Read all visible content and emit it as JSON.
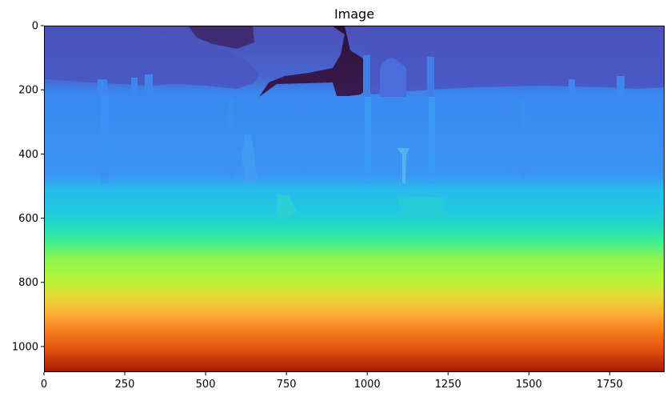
{
  "chart_data": {
    "type": "heatmap",
    "title": "Image",
    "xlabel": "",
    "ylabel": "",
    "xlim": [
      0,
      1920
    ],
    "ylim": [
      1080,
      0
    ],
    "y_inverted": true,
    "colormap": "turbo",
    "x_ticks": [
      0,
      250,
      500,
      750,
      1000,
      1250,
      1500,
      1750
    ],
    "y_ticks": [
      0,
      200,
      400,
      600,
      800,
      1000
    ],
    "colors": {
      "sky_dark": "#2e1440",
      "top_blue": "#4a4fb8",
      "wall_blue": "#3a8bf0",
      "light_blue": "#2bb6ee",
      "cyan": "#22d6c7",
      "green": "#55f07d",
      "yellow_green": "#b6f336",
      "orange": "#fca237",
      "red": "#cc3009",
      "dark_red": "#a21504"
    }
  }
}
